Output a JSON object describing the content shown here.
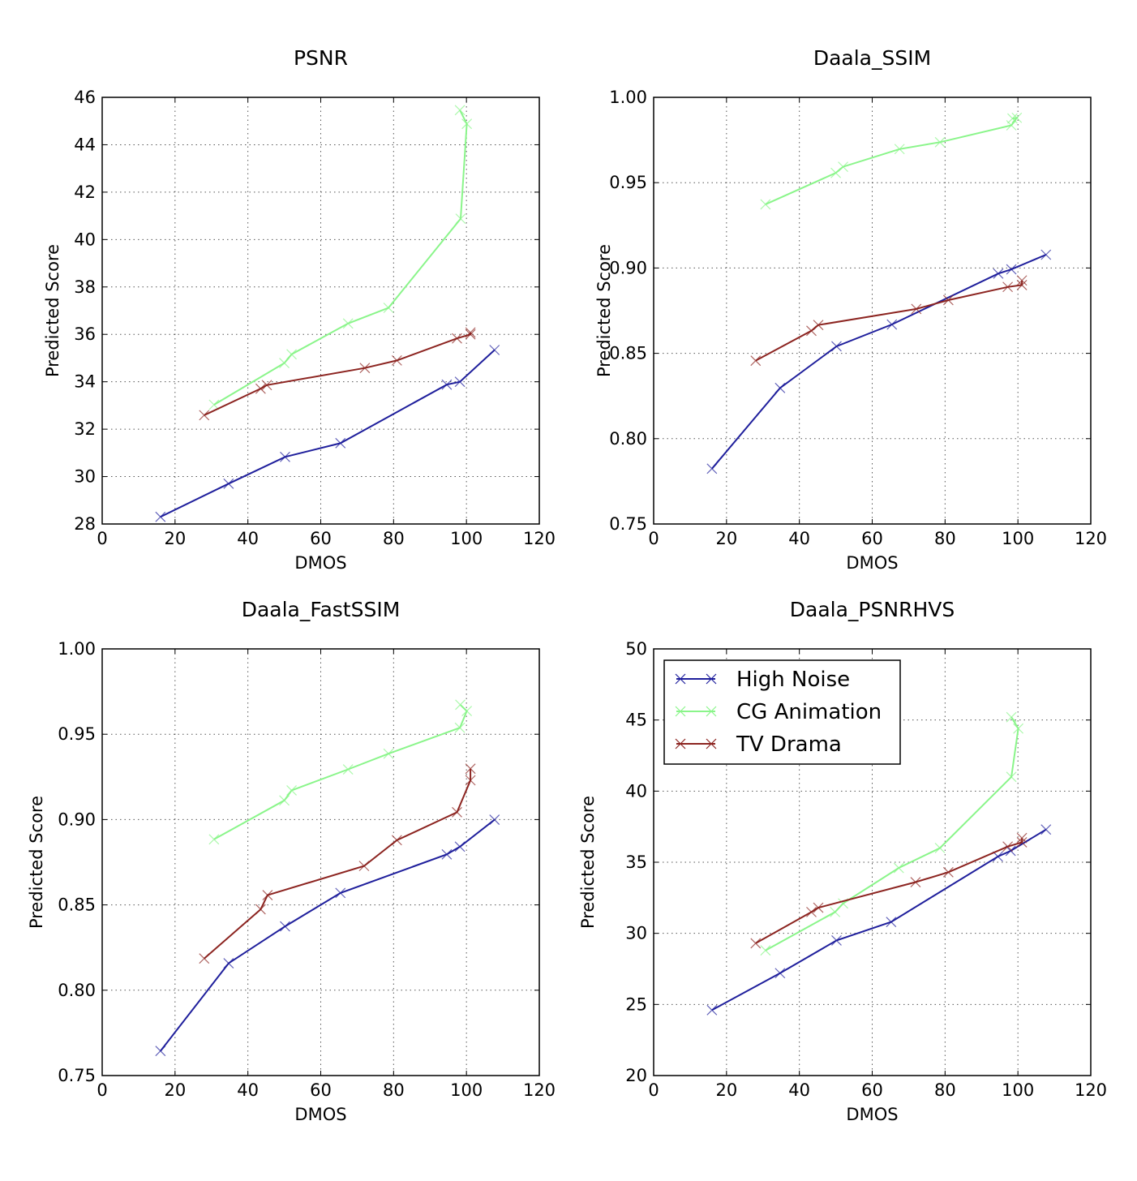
{
  "chart_data": [
    {
      "type": "line",
      "title": "PSNR",
      "xlabel": "DMOS",
      "ylabel": "Predicted Score",
      "xlim": [
        0,
        120
      ],
      "ylim": [
        28,
        46
      ],
      "xticks": [
        0,
        20,
        40,
        60,
        80,
        100,
        120
      ],
      "yticks": [
        28,
        30,
        32,
        34,
        36,
        38,
        40,
        42,
        44,
        46
      ],
      "tick_format": "int",
      "grid": true,
      "series": [
        {
          "name": "High Noise",
          "x": [
            16,
            34.7,
            50.2,
            65.4,
            94.6,
            98.2,
            107.7
          ],
          "y": [
            28.3,
            29.7,
            30.83,
            31.41,
            33.88,
            34.0,
            35.34
          ]
        },
        {
          "name": "CG Animation",
          "x": [
            30.7,
            50,
            52,
            67.5,
            78.6,
            98.4,
            100.1,
            98.2
          ],
          "y": [
            33.03,
            34.79,
            35.16,
            36.46,
            37.12,
            40.88,
            44.88,
            45.46
          ]
        },
        {
          "name": "TV Drama",
          "x": [
            28,
            43.5,
            45.2,
            72.1,
            80.9,
            97.4,
            101.1,
            101.1
          ],
          "y": [
            32.59,
            33.71,
            33.86,
            34.58,
            34.9,
            35.83,
            36.0,
            36.08
          ]
        }
      ]
    },
    {
      "type": "line",
      "title": "Daala_SSIM",
      "xlabel": "DMOS",
      "ylabel": "Predicted Score",
      "xlim": [
        0,
        120
      ],
      "ylim": [
        0.75,
        1.0
      ],
      "xticks": [
        0,
        20,
        40,
        60,
        80,
        100,
        120
      ],
      "yticks": [
        0.75,
        0.8,
        0.85,
        0.9,
        0.95,
        1.0
      ],
      "tick_format": "2dp",
      "grid": true,
      "series": [
        {
          "name": "High Noise",
          "x": [
            16,
            34.7,
            50.2,
            65.4,
            94.6,
            98.2,
            107.7
          ],
          "y": [
            0.7824,
            0.8297,
            0.8541,
            0.8669,
            0.8967,
            0.8992,
            0.9078
          ]
        },
        {
          "name": "CG Animation",
          "x": [
            30.7,
            50,
            52,
            67.5,
            78.6,
            98.2,
            99.7,
            98.5
          ],
          "y": [
            0.9373,
            0.9557,
            0.9593,
            0.9697,
            0.9737,
            0.9836,
            0.988,
            0.9876
          ]
        },
        {
          "name": "TV Drama",
          "x": [
            28,
            43.3,
            45.2,
            72.1,
            80.9,
            97.2,
            101.1,
            101.1
          ],
          "y": [
            0.8457,
            0.8632,
            0.8666,
            0.876,
            0.8812,
            0.8889,
            0.89,
            0.8927
          ]
        }
      ]
    },
    {
      "type": "line",
      "title": "Daala_FastSSIM",
      "xlabel": "DMOS",
      "ylabel": "Predicted Score",
      "xlim": [
        0,
        120
      ],
      "ylim": [
        0.75,
        1.0
      ],
      "xticks": [
        0,
        20,
        40,
        60,
        80,
        100,
        120
      ],
      "yticks": [
        0.75,
        0.8,
        0.85,
        0.9,
        0.95,
        1.0
      ],
      "tick_format": "2dp",
      "grid": true,
      "series": [
        {
          "name": "High Noise",
          "x": [
            16,
            34.7,
            50.2,
            65.4,
            94.6,
            98.2,
            107.7
          ],
          "y": [
            0.7644,
            0.8158,
            0.8374,
            0.857,
            0.8796,
            0.8841,
            0.8999
          ]
        },
        {
          "name": "CG Animation",
          "x": [
            30.7,
            50,
            52,
            67.5,
            78.6,
            98.2,
            100.1,
            98.3
          ],
          "y": [
            0.8884,
            0.9112,
            0.9171,
            0.9294,
            0.9386,
            0.9538,
            0.9636,
            0.9673
          ]
        },
        {
          "name": "TV Drama",
          "x": [
            28,
            43.5,
            45.4,
            71.9,
            80.9,
            97.4,
            101.1,
            101.1
          ],
          "y": [
            0.8186,
            0.8474,
            0.8557,
            0.8728,
            0.8879,
            0.9043,
            0.923,
            0.9298
          ]
        }
      ]
    },
    {
      "type": "line",
      "title": "Daala_PSNRHVS",
      "xlabel": "DMOS",
      "ylabel": "Predicted Score",
      "xlim": [
        0,
        120
      ],
      "ylim": [
        20,
        50
      ],
      "xticks": [
        0,
        20,
        40,
        60,
        80,
        100,
        120
      ],
      "yticks": [
        20,
        25,
        30,
        35,
        40,
        45,
        50
      ],
      "tick_format": "int",
      "grid": true,
      "legend": {
        "placement": "upper-left",
        "entries": [
          "High Noise",
          "CG Animation",
          "TV Drama"
        ]
      },
      "series": [
        {
          "name": "High Noise",
          "x": [
            16,
            34.7,
            50.2,
            65.2,
            94.5,
            98,
            107.7
          ],
          "y": [
            24.6,
            27.2,
            29.5,
            30.8,
            35.4,
            35.8,
            37.3
          ]
        },
        {
          "name": "CG Animation",
          "x": [
            30.7,
            49.8,
            52,
            67.3,
            78.6,
            98.2,
            100.1,
            98.2
          ],
          "y": [
            28.8,
            31.5,
            32.1,
            34.6,
            36.0,
            41.0,
            44.4,
            45.2
          ]
        },
        {
          "name": "TV Drama",
          "x": [
            28,
            43.3,
            45.2,
            71.9,
            80.9,
            97.2,
            101.1,
            101.1
          ],
          "y": [
            29.3,
            31.5,
            31.8,
            33.6,
            34.3,
            36.1,
            36.4,
            36.7
          ]
        }
      ]
    }
  ],
  "series_colors": {
    "High Noise": "#1f1f9c",
    "CG Animation": "#8af58a",
    "TV Drama": "#8c2420"
  },
  "marker": "x"
}
